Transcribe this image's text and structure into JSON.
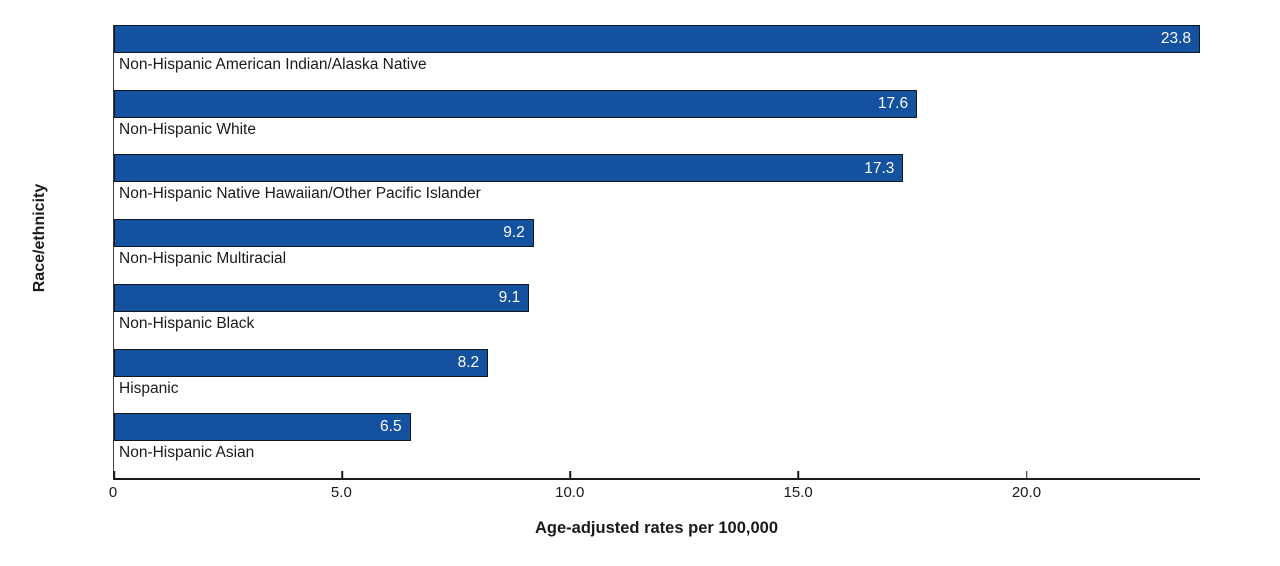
{
  "chart_data": {
    "type": "bar",
    "orientation": "horizontal",
    "title": "",
    "xlabel": "Age-adjusted rates per 100,000",
    "ylabel": "Race/ethnicity",
    "xlim": [
      0,
      23.8
    ],
    "grid": false,
    "legend": false,
    "categories": [
      "Non-Hispanic American Indian/Alaska Native",
      "Non-Hispanic White",
      "Non-Hispanic Native Hawaiian/Other Pacific Islander",
      "Non-Hispanic Multiracial",
      "Non-Hispanic Black",
      "Hispanic",
      "Non-Hispanic Asian"
    ],
    "values": [
      23.8,
      17.6,
      17.3,
      9.2,
      9.1,
      8.2,
      6.5
    ],
    "value_labels": [
      "23.8",
      "17.6",
      "17.3",
      "9.2",
      "9.1",
      "8.2",
      "6.5"
    ],
    "xticks": [
      {
        "value": 0,
        "label": "0"
      },
      {
        "value": 5,
        "label": "5.0"
      },
      {
        "value": 10,
        "label": "10.0"
      },
      {
        "value": 15,
        "label": "15.0"
      },
      {
        "value": 20,
        "label": "20.0"
      }
    ],
    "colors": {
      "bar_fill": "#14519F",
      "bar_border": "#131720",
      "value_label": "#ffffff",
      "axis_line": "#1a1a1a",
      "tick": "#1a1a1a",
      "text": "#1a1a1a"
    }
  }
}
